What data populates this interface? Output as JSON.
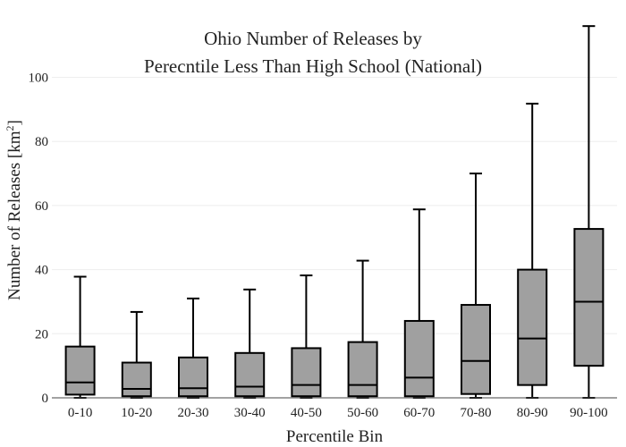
{
  "chart_data": {
    "type": "box",
    "title_lines": [
      "Ohio Number of Releases by",
      "Perecntile Less Than High School (National)"
    ],
    "xlabel": "Percentile Bin",
    "ylabel": "Number of Releases  [km",
    "ylabel_superscript": "2",
    "ylabel_suffix": "]",
    "ylim": [
      0,
      118
    ],
    "yticks": [
      0,
      20,
      40,
      60,
      80,
      100
    ],
    "grid": true,
    "box_color": "#a0a0a0",
    "categories": [
      "0-10",
      "10-20",
      "20-30",
      "30-40",
      "40-50",
      "50-60",
      "60-70",
      "70-80",
      "80-90",
      "90-100"
    ],
    "boxes": [
      {
        "min": 0,
        "q1": 1,
        "median": 4.8,
        "q3": 16,
        "max": 37.8
      },
      {
        "min": 0,
        "q1": 0.5,
        "median": 2.8,
        "q3": 11,
        "max": 26.8
      },
      {
        "min": 0,
        "q1": 0.5,
        "median": 3,
        "q3": 12.6,
        "max": 31
      },
      {
        "min": 0,
        "q1": 0.5,
        "median": 3.5,
        "q3": 14,
        "max": 33.8
      },
      {
        "min": 0,
        "q1": 0.5,
        "median": 4,
        "q3": 15.5,
        "max": 38.2
      },
      {
        "min": 0,
        "q1": 0.5,
        "median": 4,
        "q3": 17.4,
        "max": 42.8
      },
      {
        "min": 0,
        "q1": 0.5,
        "median": 6.3,
        "q3": 24,
        "max": 58.8
      },
      {
        "min": 0,
        "q1": 1.2,
        "median": 11.5,
        "q3": 29,
        "max": 70
      },
      {
        "min": 0,
        "q1": 4,
        "median": 18.5,
        "q3": 40,
        "max": 91.8
      },
      {
        "min": 0,
        "q1": 10,
        "median": 30,
        "q3": 52.7,
        "max": 116
      }
    ]
  }
}
